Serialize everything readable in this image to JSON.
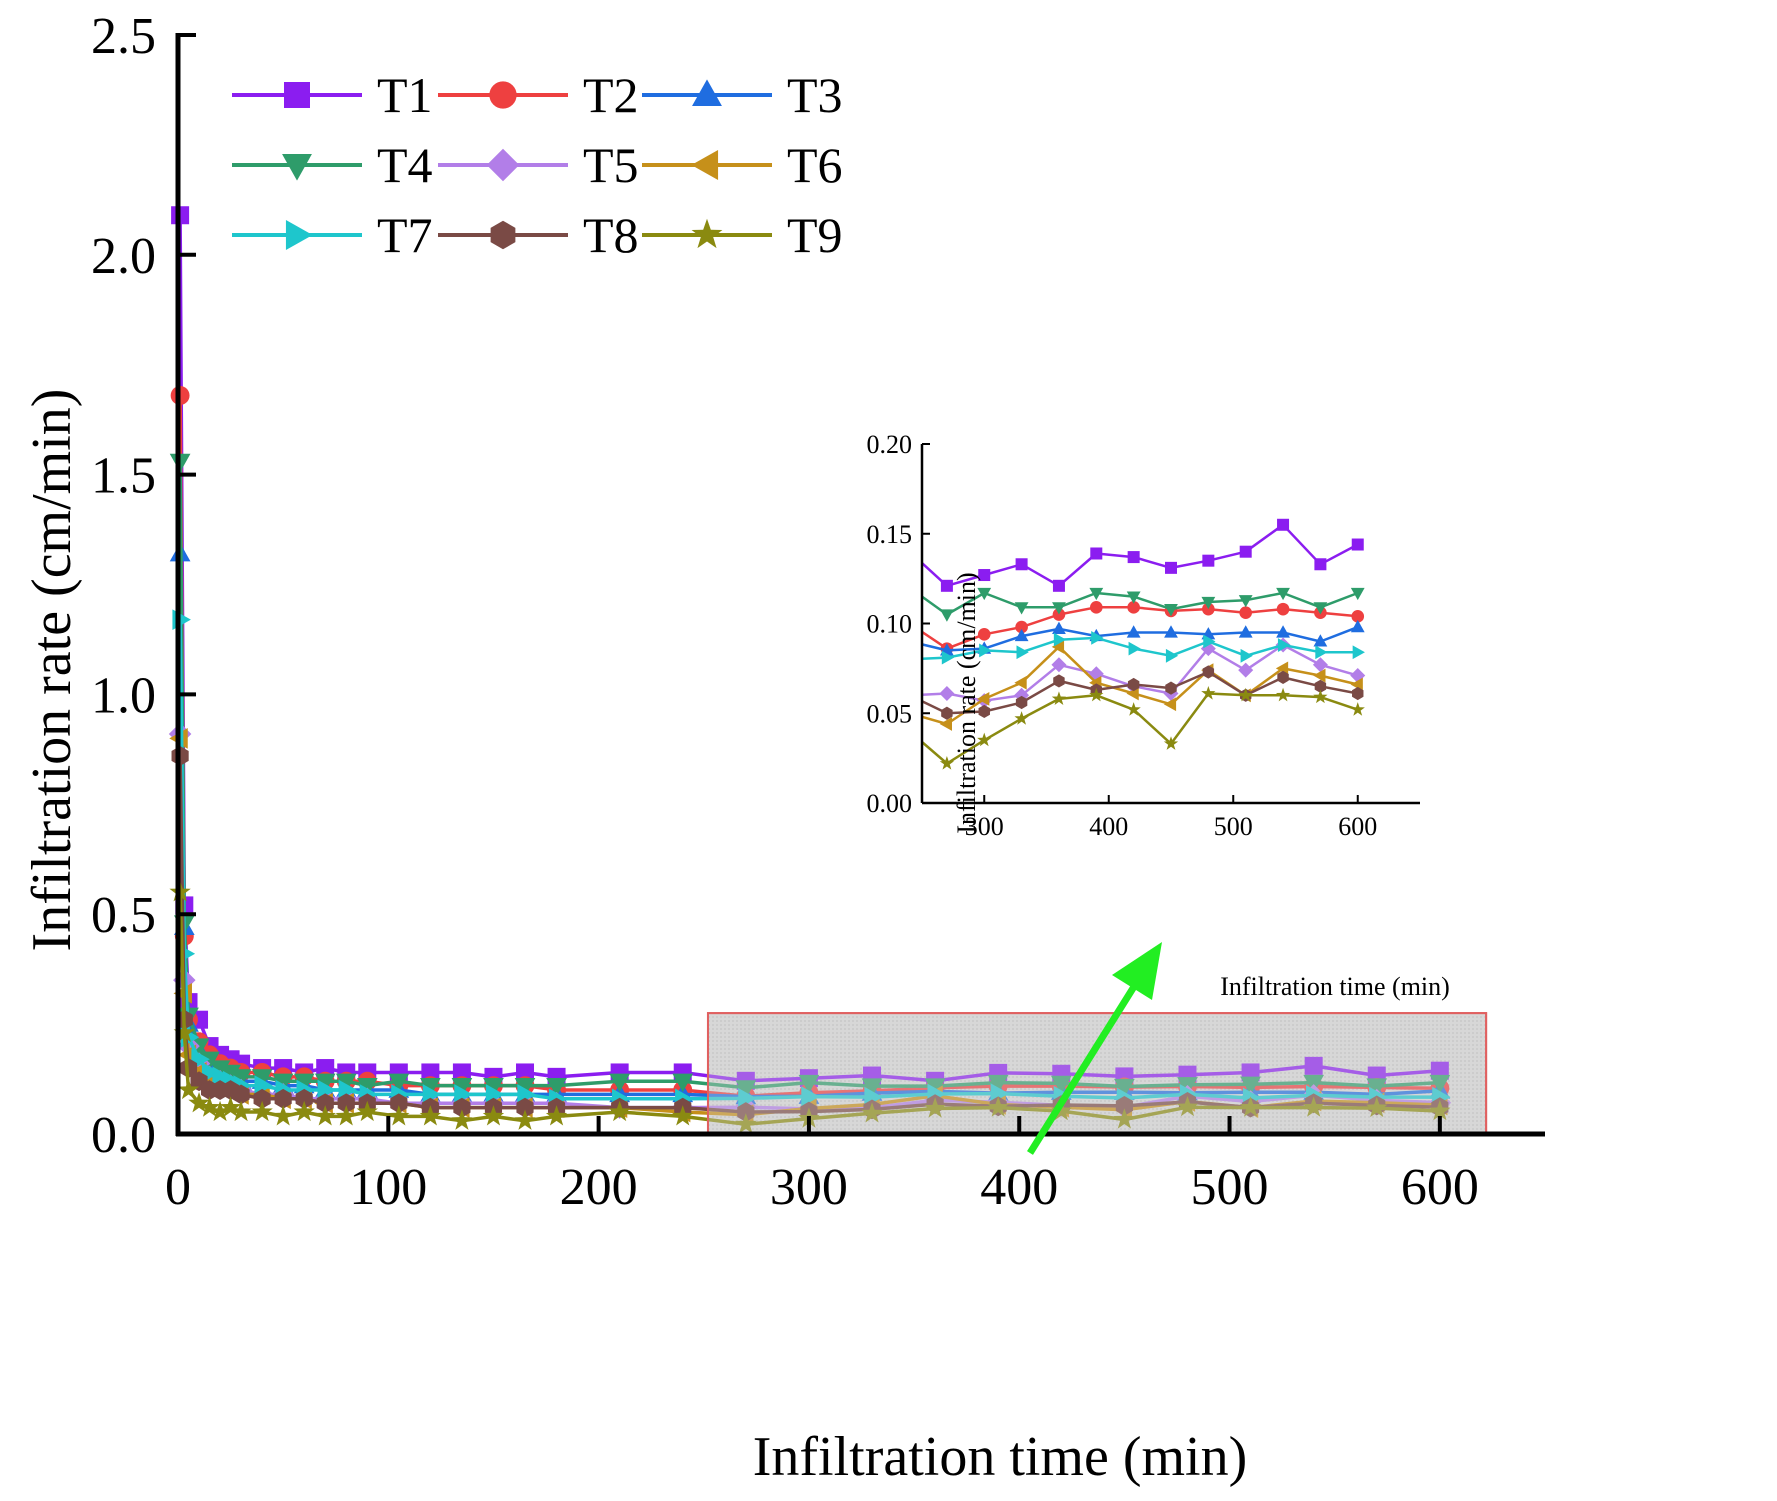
{
  "chart_data": [
    {
      "type": "line",
      "role": "main",
      "xlabel": "Infiltration time (min)",
      "ylabel": "Infiltration rate (cm/min)",
      "xlim": [
        0,
        650
      ],
      "ylim": [
        0,
        2.5
      ],
      "xticks": [
        0,
        100,
        200,
        300,
        400,
        500,
        600
      ],
      "xtick_labels": [
        "0",
        "100",
        "200",
        "300",
        "400",
        "500",
        "600"
      ],
      "yticks": [
        0,
        0.5,
        1.0,
        1.5,
        2.0,
        2.5
      ],
      "ytick_labels": [
        "0.0",
        "0.5",
        "1.0",
        "1.5",
        "2.0",
        "2.5"
      ],
      "legend_position": "top-left",
      "x": [
        1,
        3,
        5,
        10,
        15,
        20,
        25,
        30,
        40,
        50,
        60,
        70,
        80,
        90,
        105,
        120,
        135,
        150,
        165,
        180,
        210,
        240,
        270,
        300,
        330,
        360,
        390,
        420,
        450,
        480,
        510,
        540,
        570,
        600
      ],
      "series": [
        {
          "name": "T1",
          "color": "#8b1df0",
          "marker": "square",
          "values": [
            2.09,
            0.52,
            0.3,
            0.26,
            0.2,
            0.18,
            0.17,
            0.16,
            0.15,
            0.15,
            0.14,
            0.15,
            0.14,
            0.14,
            0.14,
            0.14,
            0.14,
            0.13,
            0.14,
            0.13,
            0.14,
            0.14,
            0.121,
            0.127,
            0.133,
            0.121,
            0.139,
            0.137,
            0.131,
            0.135,
            0.14,
            0.155,
            0.133,
            0.144
          ]
        },
        {
          "name": "T2",
          "color": "#ee4040",
          "marker": "circle",
          "values": [
            1.68,
            0.45,
            0.26,
            0.21,
            0.18,
            0.16,
            0.15,
            0.14,
            0.14,
            0.13,
            0.13,
            0.12,
            0.12,
            0.12,
            0.11,
            0.11,
            0.11,
            0.11,
            0.11,
            0.1,
            0.1,
            0.1,
            0.086,
            0.094,
            0.098,
            0.105,
            0.109,
            0.109,
            0.107,
            0.108,
            0.106,
            0.108,
            0.106,
            0.104
          ]
        },
        {
          "name": "T3",
          "color": "#1f6de0",
          "marker": "triangle-up",
          "values": [
            1.32,
            0.47,
            0.25,
            0.19,
            0.16,
            0.14,
            0.13,
            0.12,
            0.12,
            0.11,
            0.11,
            0.1,
            0.1,
            0.1,
            0.1,
            0.09,
            0.09,
            0.09,
            0.09,
            0.09,
            0.09,
            0.09,
            0.085,
            0.086,
            0.093,
            0.097,
            0.093,
            0.095,
            0.095,
            0.094,
            0.095,
            0.095,
            0.09,
            0.098
          ]
        },
        {
          "name": "T4",
          "color": "#2e9c6a",
          "marker": "triangle-down",
          "values": [
            1.53,
            0.48,
            0.27,
            0.2,
            0.17,
            0.15,
            0.14,
            0.13,
            0.13,
            0.12,
            0.12,
            0.12,
            0.12,
            0.11,
            0.12,
            0.11,
            0.11,
            0.11,
            0.11,
            0.11,
            0.12,
            0.12,
            0.105,
            0.117,
            0.109,
            0.109,
            0.117,
            0.115,
            0.108,
            0.112,
            0.113,
            0.117,
            0.109,
            0.117
          ]
        },
        {
          "name": "T5",
          "color": "#b27ee8",
          "marker": "diamond",
          "values": [
            0.91,
            0.35,
            0.2,
            0.16,
            0.13,
            0.12,
            0.11,
            0.1,
            0.09,
            0.09,
            0.08,
            0.08,
            0.08,
            0.08,
            0.07,
            0.07,
            0.07,
            0.07,
            0.07,
            0.07,
            0.06,
            0.06,
            0.061,
            0.057,
            0.06,
            0.077,
            0.072,
            0.065,
            0.061,
            0.086,
            0.074,
            0.088,
            0.077,
            0.071
          ]
        },
        {
          "name": "T6",
          "color": "#c6901a",
          "marker": "triangle-left",
          "values": [
            0.9,
            0.32,
            0.18,
            0.14,
            0.12,
            0.11,
            0.1,
            0.09,
            0.09,
            0.08,
            0.08,
            0.07,
            0.07,
            0.07,
            0.07,
            0.06,
            0.06,
            0.06,
            0.06,
            0.06,
            0.06,
            0.05,
            0.044,
            0.058,
            0.067,
            0.087,
            0.067,
            0.061,
            0.055,
            0.074,
            0.06,
            0.075,
            0.071,
            0.066
          ]
        },
        {
          "name": "T7",
          "color": "#1ec6cc",
          "marker": "triangle-right",
          "values": [
            1.17,
            0.41,
            0.22,
            0.17,
            0.14,
            0.13,
            0.12,
            0.11,
            0.11,
            0.1,
            0.1,
            0.1,
            0.1,
            0.09,
            0.09,
            0.09,
            0.09,
            0.09,
            0.09,
            0.08,
            0.08,
            0.08,
            0.081,
            0.085,
            0.084,
            0.091,
            0.092,
            0.086,
            0.082,
            0.09,
            0.082,
            0.088,
            0.084,
            0.084
          ]
        },
        {
          "name": "T8",
          "color": "#7a4a45",
          "marker": "hexagon",
          "values": [
            0.86,
            0.26,
            0.15,
            0.12,
            0.1,
            0.1,
            0.1,
            0.09,
            0.08,
            0.08,
            0.08,
            0.07,
            0.07,
            0.07,
            0.07,
            0.06,
            0.06,
            0.06,
            0.06,
            0.06,
            0.06,
            0.06,
            0.05,
            0.051,
            0.056,
            0.068,
            0.063,
            0.066,
            0.064,
            0.073,
            0.06,
            0.07,
            0.065,
            0.061
          ]
        },
        {
          "name": "T9",
          "color": "#8a8a10",
          "marker": "star",
          "values": [
            0.55,
            0.23,
            0.1,
            0.07,
            0.06,
            0.05,
            0.06,
            0.05,
            0.05,
            0.04,
            0.05,
            0.04,
            0.04,
            0.05,
            0.04,
            0.04,
            0.03,
            0.04,
            0.03,
            0.04,
            0.05,
            0.04,
            0.022,
            0.035,
            0.047,
            0.058,
            0.06,
            0.052,
            0.033,
            0.061,
            0.06,
            0.06,
            0.059,
            0.052
          ]
        }
      ]
    },
    {
      "type": "line",
      "role": "inset",
      "xlabel": "Infiltration time (min)",
      "ylabel": "Infiltration rate (cm/min)",
      "xlim": [
        250,
        650
      ],
      "ylim": [
        0,
        0.2
      ],
      "xticks": [
        300,
        400,
        500,
        600
      ],
      "xtick_labels": [
        "300",
        "400",
        "500",
        "600"
      ],
      "yticks": [
        0,
        0.05,
        0.1,
        0.15,
        0.2
      ],
      "ytick_labels": [
        "0.00",
        "0.05",
        "0.10",
        "0.15",
        "0.20"
      ],
      "x_range_shown": [
        250,
        600
      ]
    }
  ]
}
